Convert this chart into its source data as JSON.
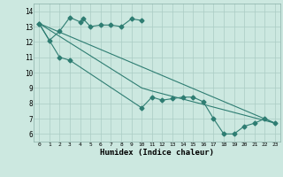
{
  "title": "",
  "xlabel": "Humidex (Indice chaleur)",
  "ylabel": "",
  "xlim": [
    -0.5,
    23.5
  ],
  "ylim": [
    5.5,
    14.5
  ],
  "xticks": [
    0,
    1,
    2,
    3,
    4,
    5,
    6,
    7,
    8,
    9,
    10,
    11,
    12,
    13,
    14,
    15,
    16,
    17,
    18,
    19,
    20,
    21,
    22,
    23
  ],
  "yticks": [
    6,
    7,
    8,
    9,
    10,
    11,
    12,
    13,
    14
  ],
  "line_color": "#2e7d72",
  "bg_color": "#cce8e0",
  "grid_color": "#aaccc4",
  "line1_x": [
    0,
    1,
    2,
    3,
    4,
    4.3,
    5,
    6,
    7,
    8,
    9,
    10
  ],
  "line1_y": [
    13.2,
    12.1,
    12.7,
    13.6,
    13.3,
    13.5,
    13.0,
    13.1,
    13.1,
    13.0,
    13.5,
    13.4
  ],
  "line2_x": [
    0,
    2,
    3,
    10,
    11,
    12,
    13,
    14,
    15,
    16,
    17,
    18,
    19,
    20,
    21,
    22,
    23
  ],
  "line2_y": [
    13.2,
    11.0,
    10.8,
    7.7,
    8.4,
    8.2,
    8.3,
    8.4,
    8.4,
    8.1,
    7.0,
    6.0,
    6.0,
    6.5,
    6.7,
    7.0,
    6.7
  ],
  "line3_x": [
    0,
    23
  ],
  "line3_y": [
    13.2,
    6.7
  ],
  "line4_x": [
    0,
    10,
    11,
    23
  ],
  "line4_y": [
    13.2,
    9.0,
    8.8,
    6.7
  ]
}
